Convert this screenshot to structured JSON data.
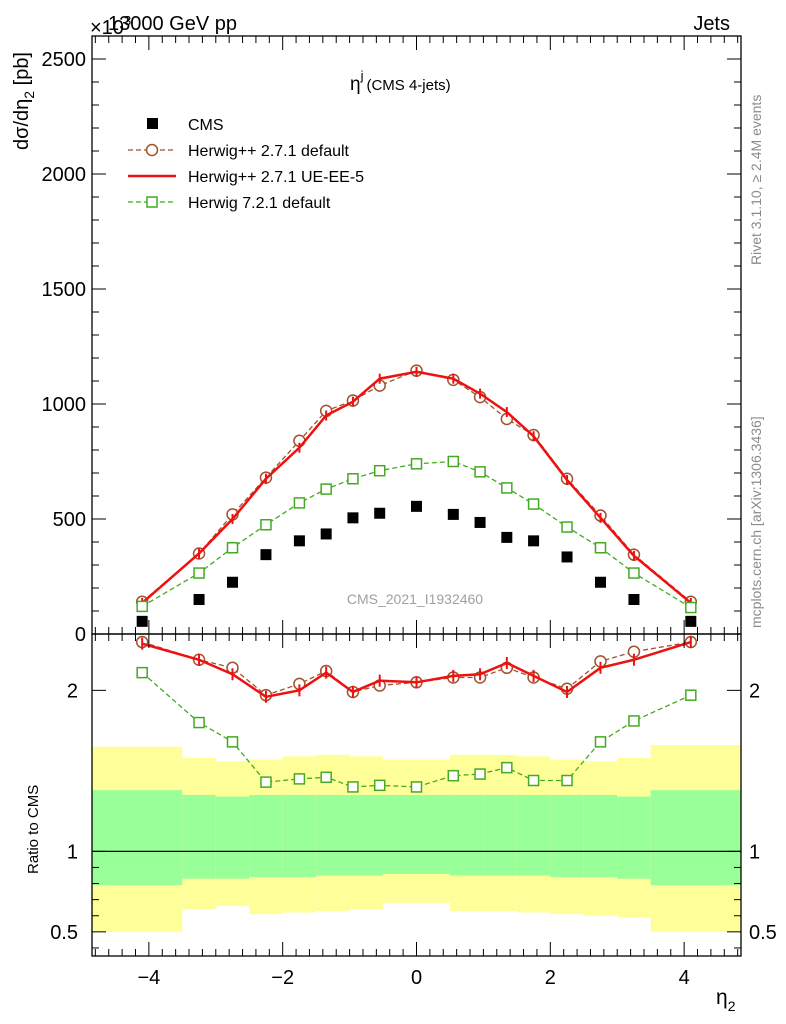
{
  "header": {
    "left": "13000 GeV pp",
    "right": "Jets",
    "multiplier": "×10"
  },
  "side_labels": {
    "rivet": "Rivet 3.1.10, ≥ 2.4M events",
    "mcplots": "mcplots.cern.ch [arXiv:1306.3436]"
  },
  "chart_data": [
    {
      "type": "line",
      "panel": "main",
      "title": "η (CMS 4-jets)",
      "title_parts": {
        "symbol": "η",
        "superscript": "j",
        "rest": "(CMS 4-jets)"
      },
      "watermark": "CMS_2021_I1932460",
      "ylabel": "dσ/dη2 [pb]",
      "ylabel_parts": {
        "main": "dσ/dη",
        "sub": "2",
        "rest": " [pb]"
      },
      "xlim": [
        -4.85,
        4.85
      ],
      "ylim": [
        0,
        2600
      ],
      "yticks": [
        0,
        500,
        1000,
        1500,
        2000,
        2500
      ],
      "ytick_labels": [
        "0",
        "500",
        "1000",
        "1500",
        "2000",
        "2500"
      ],
      "legend_position": "top-left",
      "x": [
        -4.1,
        -3.25,
        -2.75,
        -2.25,
        -1.75,
        -1.35,
        -0.95,
        -0.55,
        0,
        0.55,
        0.95,
        1.35,
        1.75,
        2.25,
        2.75,
        3.25,
        4.1
      ],
      "series": [
        {
          "name": "CMS",
          "style": "markers",
          "color": "#000000",
          "values": [
            55,
            150,
            225,
            345,
            405,
            435,
            505,
            525,
            555,
            520,
            485,
            420,
            405,
            335,
            225,
            150,
            55
          ]
        },
        {
          "name": "Herwig++ 2.7.1 default",
          "style": "dashed-circle",
          "color": "#a0522d",
          "values": [
            140,
            350,
            520,
            680,
            840,
            970,
            1015,
            1080,
            1145,
            1105,
            1030,
            935,
            865,
            675,
            515,
            345,
            140
          ]
        },
        {
          "name": "Herwig++ 2.7.1 UE-EE-5",
          "style": "solid",
          "color": "#ee1111",
          "values": [
            135,
            350,
            500,
            675,
            810,
            950,
            1010,
            1110,
            1140,
            1110,
            1045,
            965,
            860,
            670,
            505,
            340,
            135
          ]
        },
        {
          "name": "Herwig 7.2.1 default",
          "style": "dashed-square",
          "color": "#44aa22",
          "values": [
            120,
            265,
            375,
            475,
            570,
            630,
            675,
            710,
            740,
            750,
            705,
            635,
            565,
            465,
            375,
            265,
            115
          ]
        }
      ]
    },
    {
      "type": "line",
      "panel": "ratio",
      "ylabel": "Ratio to CMS",
      "xlabel": "η2",
      "xlabel_parts": {
        "main": "η",
        "sub": "2"
      },
      "xlim": [
        -4.85,
        4.85
      ],
      "ylim": [
        0.35,
        2.35
      ],
      "xticks": [
        -4,
        -2,
        0,
        2,
        4
      ],
      "xtick_labels": [
        "−4",
        "−2",
        "0",
        "2",
        "4"
      ],
      "yticks": [
        0.5,
        1,
        2
      ],
      "ytick_labels": [
        "0.5",
        "1",
        "2"
      ],
      "reference_line": 1,
      "band_edges": [
        -4.85,
        -3.5,
        -3.0,
        -2.5,
        -2.0,
        -1.5,
        -1.0,
        -0.5,
        0,
        0.5,
        1.0,
        1.5,
        2.0,
        2.5,
        3.0,
        3.5,
        4.85
      ],
      "band_inner": [
        [
          0.79,
          1.38
        ],
        [
          0.83,
          1.35
        ],
        [
          0.83,
          1.34
        ],
        [
          0.84,
          1.35
        ],
        [
          0.84,
          1.35
        ],
        [
          0.85,
          1.35
        ],
        [
          0.85,
          1.35
        ],
        [
          0.86,
          1.35
        ],
        [
          0.86,
          1.35
        ],
        [
          0.85,
          1.35
        ],
        [
          0.85,
          1.35
        ],
        [
          0.85,
          1.35
        ],
        [
          0.84,
          1.35
        ],
        [
          0.84,
          1.35
        ],
        [
          0.83,
          1.34
        ],
        [
          0.79,
          1.38
        ]
      ],
      "band_outer": [
        [
          0.5,
          1.65
        ],
        [
          0.64,
          1.58
        ],
        [
          0.66,
          1.56
        ],
        [
          0.61,
          1.57
        ],
        [
          0.62,
          1.59
        ],
        [
          0.63,
          1.6
        ],
        [
          0.64,
          1.59
        ],
        [
          0.68,
          1.57
        ],
        [
          0.68,
          1.57
        ],
        [
          0.63,
          1.6
        ],
        [
          0.63,
          1.6
        ],
        [
          0.62,
          1.59
        ],
        [
          0.61,
          1.57
        ],
        [
          0.6,
          1.56
        ],
        [
          0.59,
          1.58
        ],
        [
          0.5,
          1.66
        ]
      ],
      "series": [
        {
          "name": "Herwig++ 2.7.1 default",
          "color": "#a0522d",
          "values": [
            2.3,
            2.19,
            2.14,
            1.97,
            2.04,
            2.12,
            1.99,
            2.03,
            2.05,
            2.08,
            2.08,
            2.14,
            2.08,
            2.01,
            2.18,
            2.24,
            2.3
          ]
        },
        {
          "name": "Herwig++ 2.7.1 UE-EE-5",
          "color": "#ee1111",
          "values": [
            2.29,
            2.19,
            2.1,
            1.96,
            2.0,
            2.11,
            1.99,
            2.06,
            2.05,
            2.09,
            2.1,
            2.17,
            2.09,
            1.99,
            2.14,
            2.19,
            2.3
          ]
        },
        {
          "name": "Herwig 7.2.1 default",
          "color": "#44aa22",
          "values": [
            2.11,
            1.8,
            1.68,
            1.43,
            1.45,
            1.46,
            1.4,
            1.41,
            1.4,
            1.47,
            1.48,
            1.52,
            1.44,
            1.44,
            1.68,
            1.81,
            1.97
          ]
        }
      ]
    }
  ]
}
